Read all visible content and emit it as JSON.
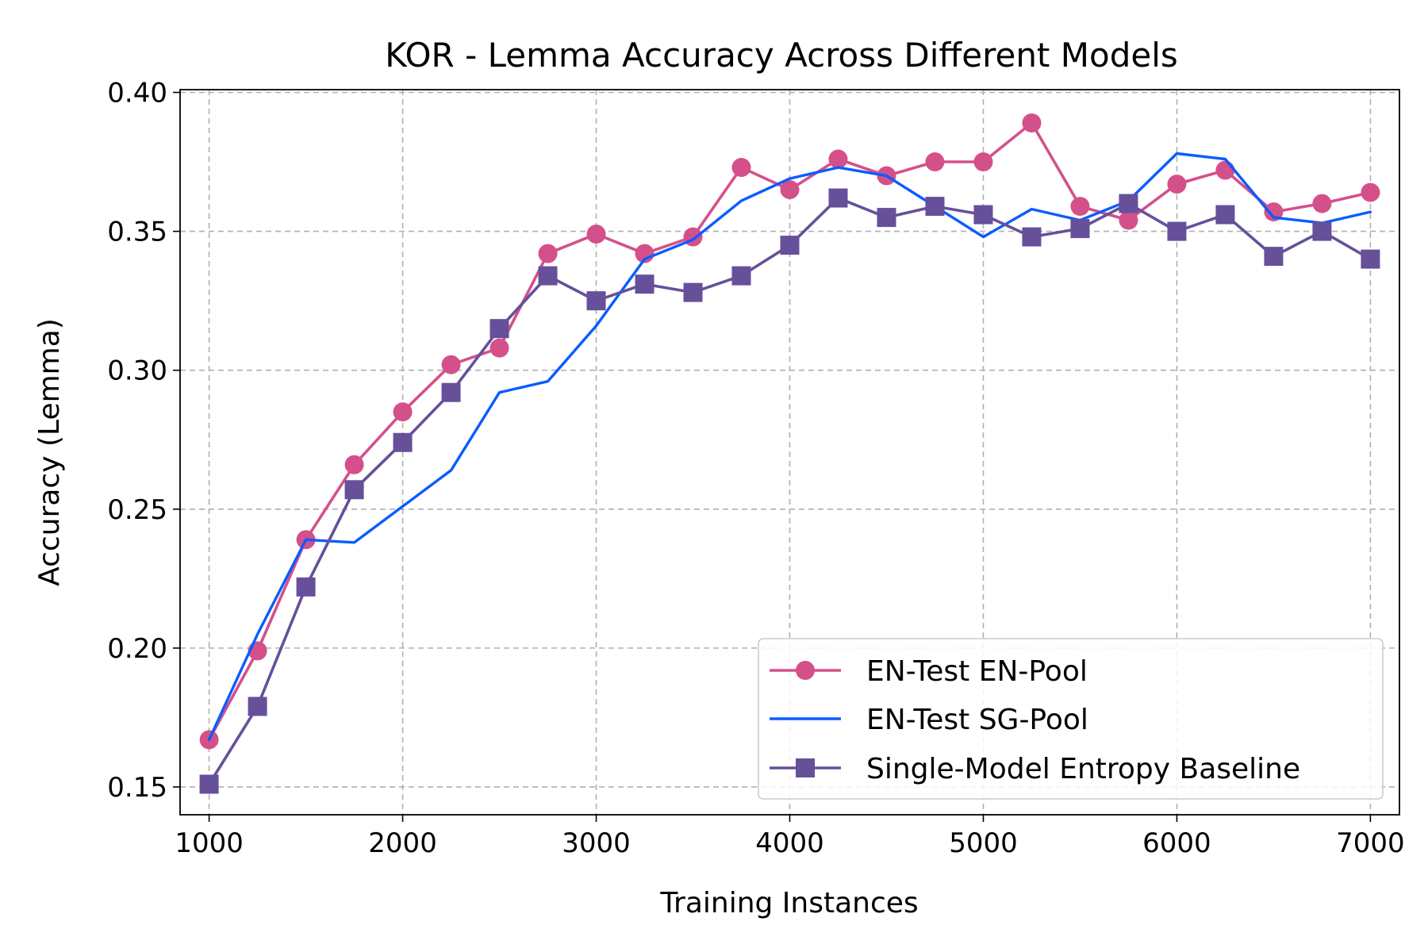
{
  "chart_data": {
    "type": "line",
    "title": "KOR - Lemma Accuracy Across Different Models",
    "xlabel": "Training Instances",
    "ylabel": "Accuracy (Lemma)",
    "xlim": [
      850,
      7150
    ],
    "ylim": [
      0.14,
      0.401
    ],
    "xticks": [
      1000,
      2000,
      3000,
      4000,
      5000,
      6000,
      7000
    ],
    "xtick_labels": [
      "1000",
      "2000",
      "3000",
      "4000",
      "5000",
      "6000",
      "7000"
    ],
    "yticks": [
      0.15,
      0.2,
      0.25,
      0.3,
      0.35,
      0.4
    ],
    "ytick_labels": [
      "0.15",
      "0.20",
      "0.25",
      "0.30",
      "0.35",
      "0.40"
    ],
    "grid": true,
    "legend_position": "lower-right",
    "x": [
      1000,
      1250,
      1500,
      1750,
      2000,
      2250,
      2500,
      2750,
      3000,
      3250,
      3500,
      3750,
      4000,
      4250,
      4500,
      4750,
      5000,
      5250,
      5500,
      5750,
      6000,
      6250,
      6500,
      6750,
      7000
    ],
    "series": [
      {
        "name": "EN-Test EN-Pool",
        "color": "#d4508a",
        "marker": "circle",
        "values": [
          0.167,
          0.199,
          0.239,
          0.266,
          0.285,
          0.302,
          0.308,
          0.342,
          0.349,
          0.342,
          0.348,
          0.373,
          0.365,
          0.376,
          0.37,
          0.375,
          0.375,
          0.389,
          0.359,
          0.354,
          0.367,
          0.372,
          0.357,
          0.36,
          0.364
        ]
      },
      {
        "name": "EN-Test SG-Pool",
        "color": "#0a5cff",
        "marker": "none",
        "values": [
          0.167,
          0.205,
          0.239,
          0.238,
          0.251,
          0.264,
          0.292,
          0.296,
          0.316,
          0.34,
          0.347,
          0.361,
          0.369,
          0.373,
          0.37,
          0.359,
          0.348,
          0.358,
          0.354,
          0.361,
          0.378,
          0.376,
          0.355,
          0.353,
          0.357
        ]
      },
      {
        "name": "Single-Model Entropy Baseline",
        "color": "#66509a",
        "marker": "square",
        "values": [
          0.151,
          0.179,
          0.222,
          0.257,
          0.274,
          0.292,
          0.315,
          0.334,
          0.325,
          0.331,
          0.328,
          0.334,
          0.345,
          0.362,
          0.355,
          0.359,
          0.356,
          0.348,
          0.351,
          0.36,
          0.35,
          0.356,
          0.341,
          0.35,
          0.34
        ]
      }
    ]
  }
}
